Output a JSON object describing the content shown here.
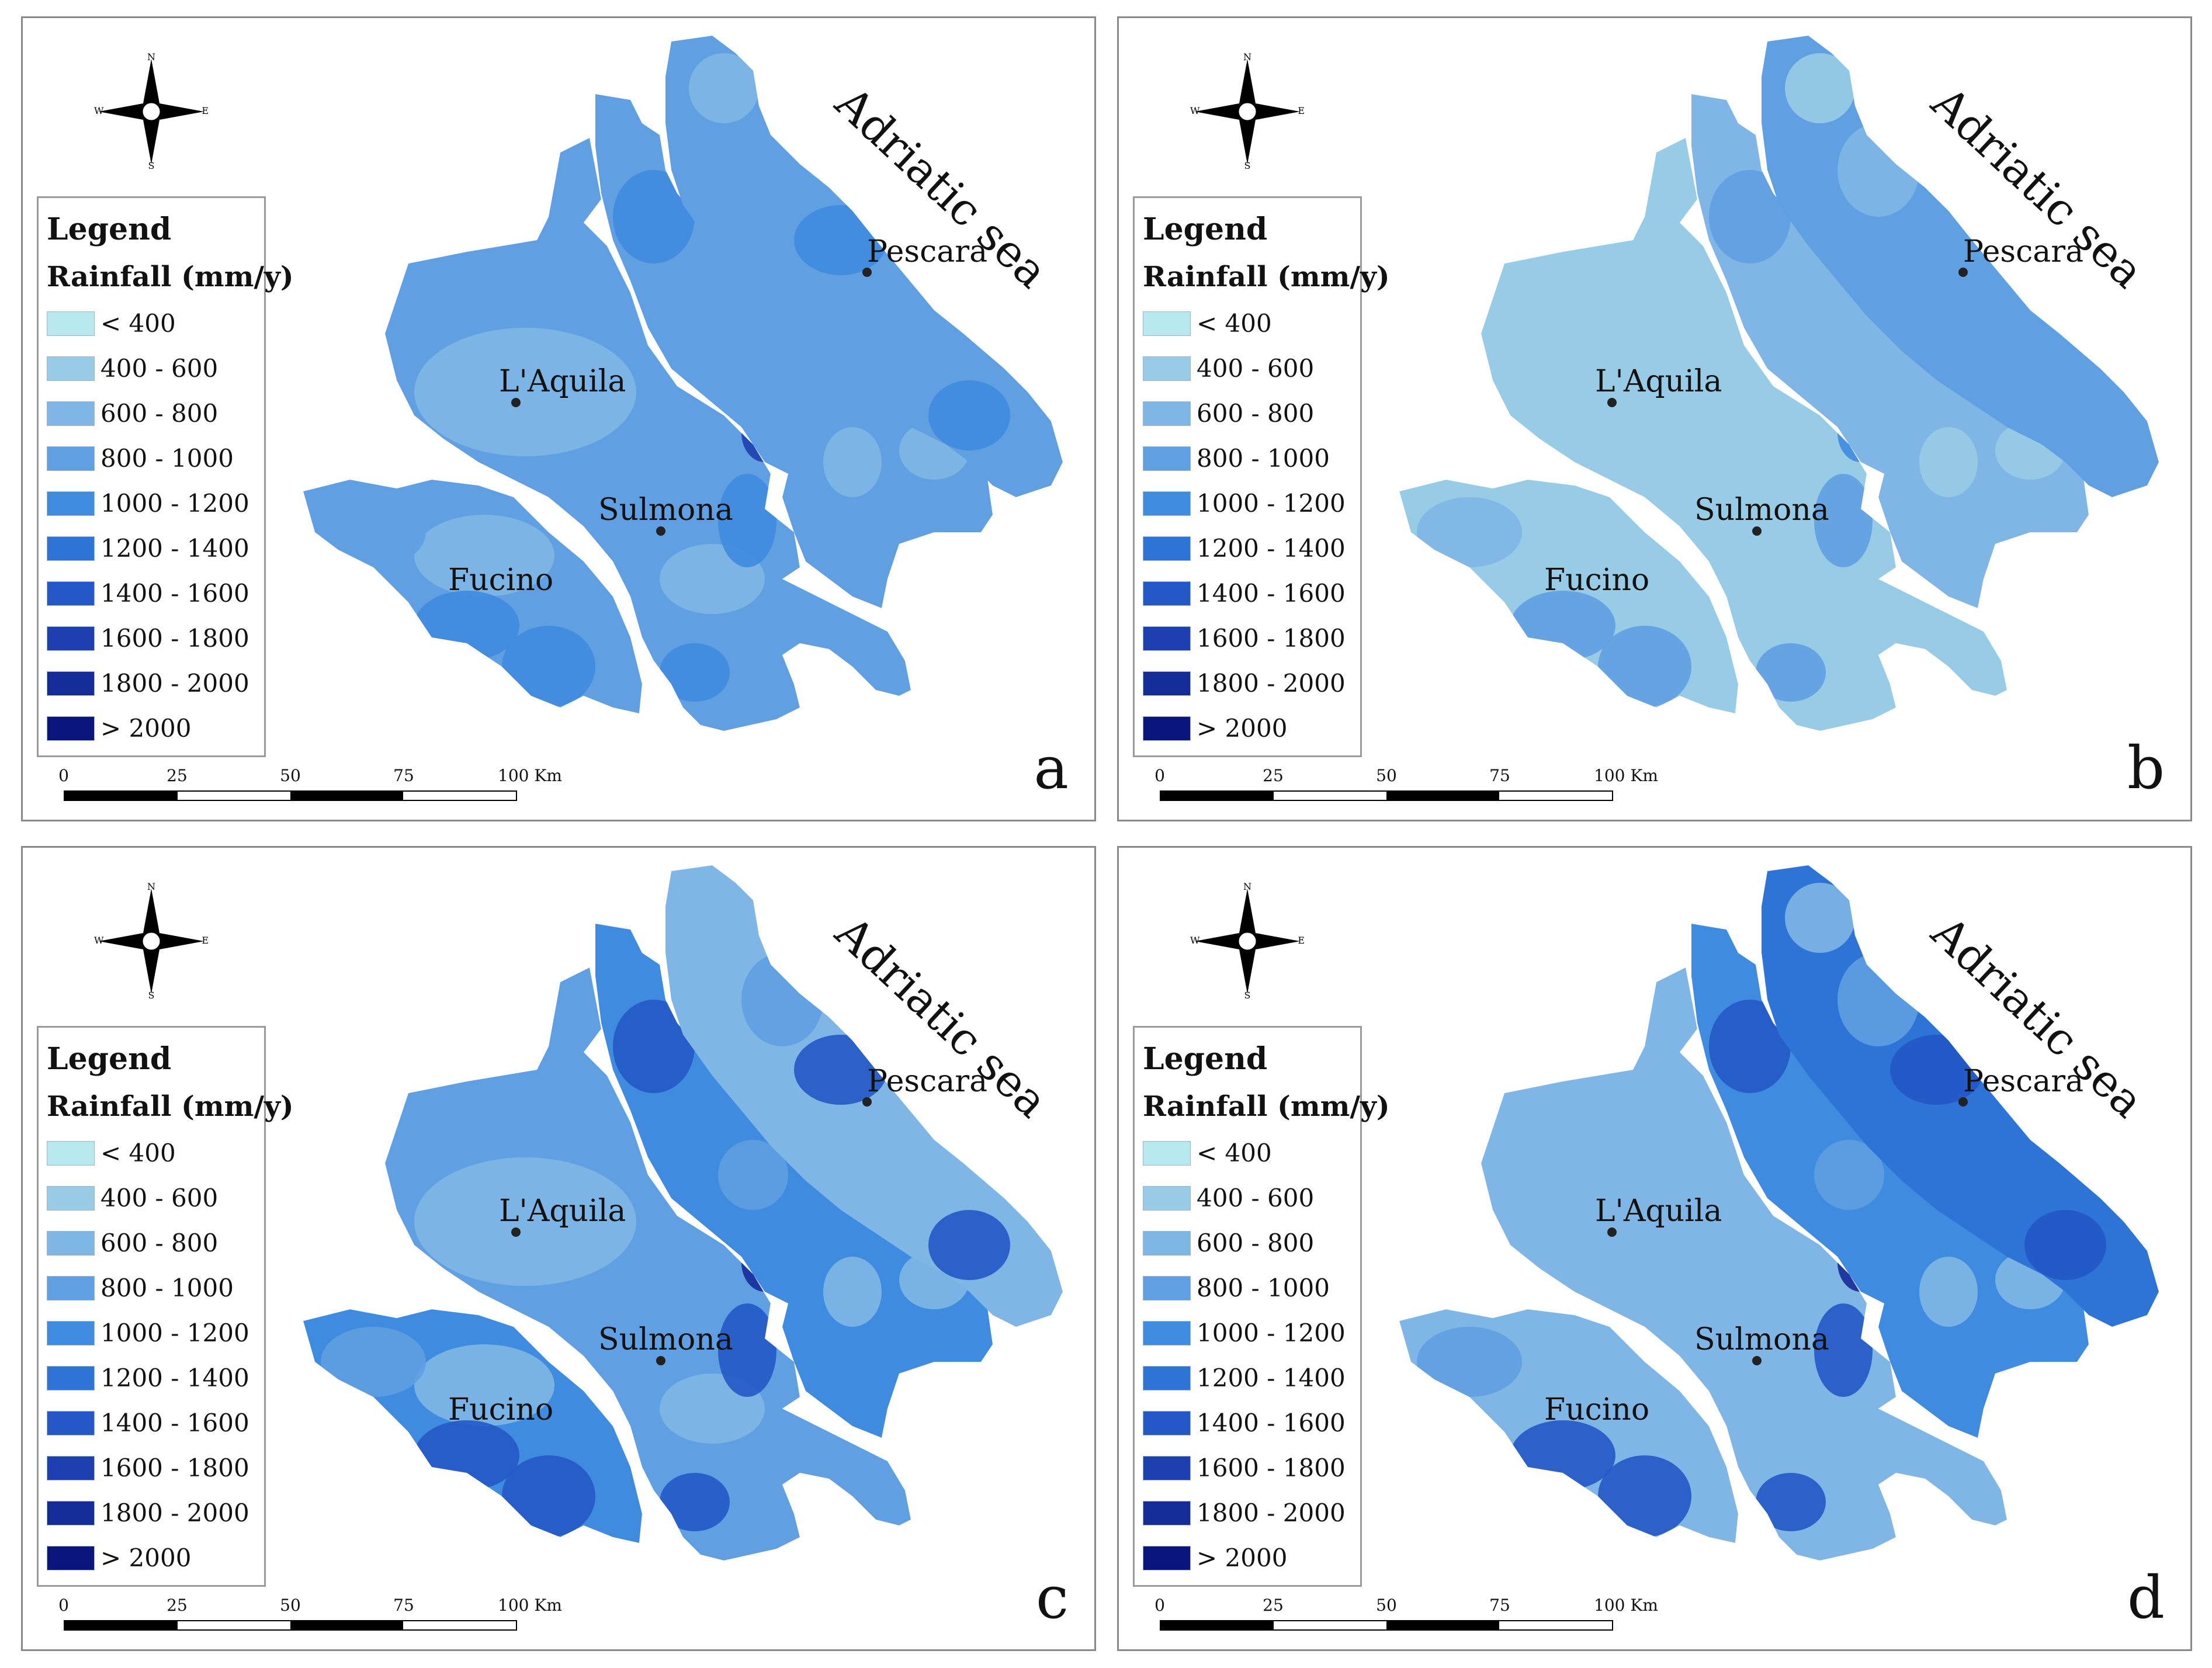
{
  "colors": {
    "c1": "#b7e9ee",
    "c2": "#98cbe6",
    "c3": "#80b6e6",
    "c4": "#5f9fe2",
    "c5": "#3f8be0",
    "c6": "#2e73d6",
    "c7": "#2458c6",
    "c8": "#1d3fb0",
    "c9": "#152b98",
    "c10": "#0b157e"
  },
  "legend": {
    "title": "Legend",
    "subtitle": "Rainfall (mm/y)",
    "classes": [
      {
        "label": "< 400",
        "color": "#b7e9ee"
      },
      {
        "label": "400 - 600",
        "color": "#98cbe6"
      },
      {
        "label": "600 - 800",
        "color": "#80b6e6"
      },
      {
        "label": "800 - 1000",
        "color": "#5f9fe2"
      },
      {
        "label": "1000 - 1200",
        "color": "#3f8be0"
      },
      {
        "label": "1200 - 1400",
        "color": "#2e73d6"
      },
      {
        "label": "1400 - 1600",
        "color": "#2458c6"
      },
      {
        "label": "1600 - 1800",
        "color": "#1d3fb0"
      },
      {
        "label": "1800 - 2000",
        "color": "#152b98"
      },
      {
        "label": "> 2000",
        "color": "#0b157e"
      }
    ]
  },
  "scale": {
    "ticks": [
      "0",
      "25",
      "50",
      "75",
      "100 Km"
    ]
  },
  "compass": {
    "n": "N",
    "s": "S",
    "e": "E",
    "w": "W",
    "icon": "compass-rose-icon"
  },
  "sea_label": "Adriatic sea",
  "cities": {
    "pescara": "Pescara",
    "laquila": "L'Aquila",
    "sulmona": "Sulmona",
    "fucino": "Fucino"
  },
  "panels": [
    {
      "letter": "a",
      "base": "#5f9fe2",
      "sw": "#5f9fe2",
      "mid": "#5f9fe2",
      "mide": "#5f9fe2",
      "ne": "#5f9fe2",
      "low": "#80b6e6",
      "high": "#3f8be0",
      "peak": "#1d3fb0"
    },
    {
      "letter": "b",
      "base": "#80b6e6",
      "sw": "#98cbe6",
      "mid": "#98cbe6",
      "mide": "#80b6e6",
      "ne": "#5f9fe2",
      "low": "#98cbe6",
      "high": "#5f9fe2",
      "peak": "#3f8be0"
    },
    {
      "letter": "c",
      "base": "#5f9fe2",
      "sw": "#3f8be0",
      "mid": "#5f9fe2",
      "mide": "#3f8be0",
      "ne": "#80b6e6",
      "low": "#80b6e6",
      "high": "#2458c6",
      "peak": "#152b98"
    },
    {
      "letter": "d",
      "base": "#5f9fe2",
      "sw": "#80b6e6",
      "mid": "#80b6e6",
      "mide": "#3f8be0",
      "ne": "#2e73d6",
      "low": "#80b6e6",
      "high": "#2458c6",
      "peak": "#152b98"
    }
  ]
}
